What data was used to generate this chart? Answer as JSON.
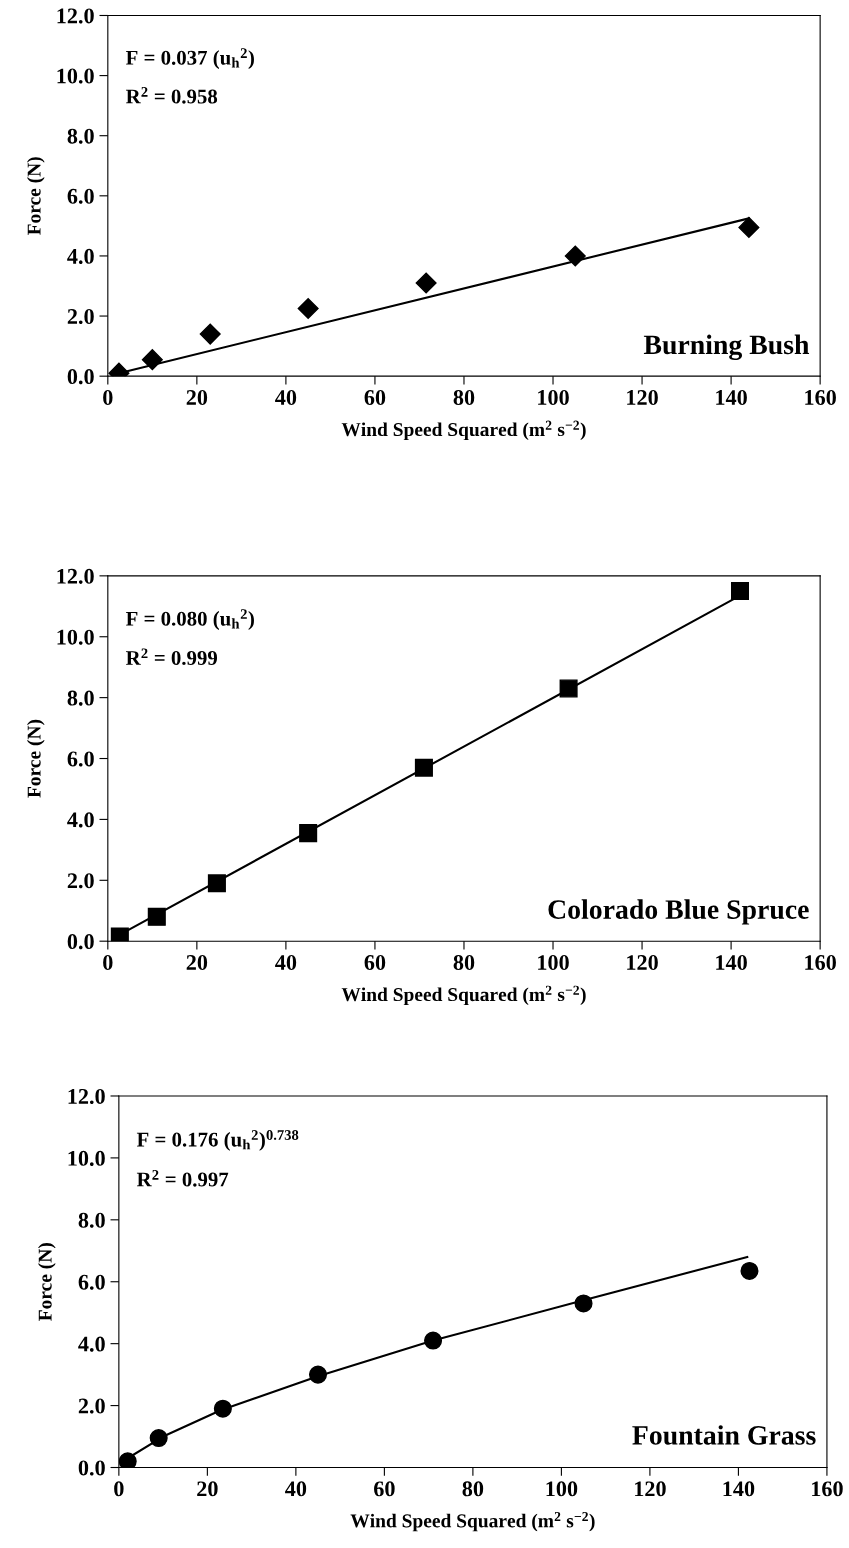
{
  "chart_data": [
    {
      "type": "scatter",
      "xlabel": "Wind Speed Squared (m$^{2}$ s$^{−2}$)",
      "ylabel": "Force (N)",
      "xlim": [
        0,
        160
      ],
      "ylim": [
        0,
        12
      ],
      "xticks": [
        0,
        20,
        40,
        60,
        80,
        100,
        120,
        140,
        160
      ],
      "yticks": [
        {
          "value": 0,
          "label": "0.0"
        },
        {
          "value": 2,
          "label": "2.0"
        },
        {
          "value": 4,
          "label": "4.0"
        },
        {
          "value": 6,
          "label": "6.0"
        },
        {
          "value": 8,
          "label": "8.0"
        },
        {
          "value": 10,
          "label": "10.0"
        },
        {
          "value": 12,
          "label": "12.0"
        }
      ],
      "grid": false,
      "legend": false,
      "annotations": [
        "F = 0.037 (u$_{h}$$^{2}$)",
        "R$^{2}$ = 0.958",
        "Burning Bush"
      ],
      "series": [
        {
          "marker": "diamond",
          "color": "#000000",
          "x": [
            2.5,
            10,
            23,
            45,
            71.5,
            105,
            144
          ],
          "values": [
            0.1,
            0.55,
            1.4,
            2.25,
            3.1,
            4.0,
            4.95
          ]
        },
        {
          "type": "line",
          "marker": "none",
          "color": "#000000",
          "x": [
            2.5,
            144
          ],
          "values": [
            0.1,
            5.25
          ]
        }
      ]
    },
    {
      "type": "scatter",
      "xlabel": "Wind Speed Squared (m$^{2}$ s$^{−2}$)",
      "ylabel": "Force (N)",
      "xlim": [
        0,
        160
      ],
      "ylim": [
        0,
        12
      ],
      "xticks": [
        0,
        20,
        40,
        60,
        80,
        100,
        120,
        140,
        160
      ],
      "yticks": [
        {
          "value": 0,
          "label": "0.0"
        },
        {
          "value": 2,
          "label": "2.0"
        },
        {
          "value": 4,
          "label": "4.0"
        },
        {
          "value": 6,
          "label": "6.0"
        },
        {
          "value": 8,
          "label": "8.0"
        },
        {
          "value": 10,
          "label": "10.0"
        },
        {
          "value": 12,
          "label": "12.0"
        }
      ],
      "grid": false,
      "legend": false,
      "annotations": [
        "F = 0.080 (u$_{h}$$^{2}$)",
        "R$^{2}$ = 0.999",
        "Colorado Blue Spruce"
      ],
      "series": [
        {
          "marker": "square",
          "color": "#000000",
          "x": [
            2.7,
            11,
            24.5,
            45,
            71,
            103.5,
            142
          ],
          "values": [
            0.15,
            0.8,
            1.9,
            3.55,
            5.7,
            8.3,
            11.5
          ]
        },
        {
          "type": "line",
          "marker": "none",
          "color": "#000000",
          "x": [
            2.5,
            142
          ],
          "values": [
            0.2,
            11.35
          ]
        }
      ]
    },
    {
      "type": "scatter",
      "xlabel": "Wind Speed Squared (m$^{2}$ s$^{−2}$)",
      "ylabel": "Force (N)",
      "xlim": [
        0,
        160
      ],
      "ylim": [
        0,
        12
      ],
      "xticks": [
        0,
        20,
        40,
        60,
        80,
        100,
        120,
        140,
        160
      ],
      "yticks": [
        {
          "value": 0,
          "label": "0.0"
        },
        {
          "value": 2,
          "label": "2.0"
        },
        {
          "value": 4,
          "label": "4.0"
        },
        {
          "value": 6,
          "label": "6.0"
        },
        {
          "value": 8,
          "label": "8.0"
        },
        {
          "value": 10,
          "label": "10.0"
        },
        {
          "value": 12,
          "label": "12.0"
        }
      ],
      "grid": false,
      "legend": false,
      "annotations": [
        "F = 0.176 (u$_{h}$$^{2}$)$^{0.738}$",
        "R$^{2}$ = 0.997",
        "Fountain Grass"
      ],
      "series": [
        {
          "marker": "circle",
          "color": "#000000",
          "x": [
            2,
            9,
            23.5,
            45,
            71,
            105,
            142.5
          ],
          "values": [
            0.2,
            0.95,
            1.9,
            3.0,
            4.1,
            5.3,
            6.35
          ]
        },
        {
          "type": "line",
          "marker": "none",
          "color": "#000000",
          "x": [
            2,
            10,
            23,
            45,
            71,
            105,
            142
          ],
          "values": [
            0.3,
            1.0,
            1.85,
            2.95,
            4.1,
            5.4,
            6.8
          ]
        }
      ]
    }
  ]
}
